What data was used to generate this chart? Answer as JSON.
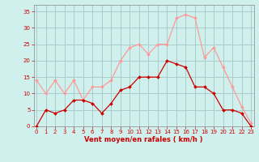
{
  "hours": [
    0,
    1,
    2,
    3,
    4,
    5,
    6,
    7,
    8,
    9,
    10,
    11,
    12,
    13,
    14,
    15,
    16,
    17,
    18,
    19,
    20,
    21,
    22,
    23
  ],
  "wind_avg": [
    0,
    5,
    4,
    5,
    8,
    8,
    7,
    4,
    7,
    11,
    12,
    15,
    15,
    15,
    20,
    19,
    18,
    12,
    12,
    10,
    5,
    5,
    4,
    0
  ],
  "wind_gust": [
    14,
    10,
    14,
    10,
    14,
    8,
    12,
    12,
    14,
    20,
    24,
    25,
    22,
    25,
    25,
    33,
    34,
    33,
    21,
    24,
    18,
    12,
    6,
    1
  ],
  "bg_color": "#cff0ec",
  "grid_color": "#aacccc",
  "line_avg_color": "#cc0000",
  "line_gust_color": "#ff9999",
  "marker_size": 2.0,
  "xlabel": "Vent moyen/en rafales ( km/h )",
  "xlabel_color": "#cc0000",
  "tick_color": "#cc0000",
  "ylim": [
    0,
    37
  ],
  "yticks": [
    0,
    5,
    10,
    15,
    20,
    25,
    30,
    35
  ],
  "xlim": [
    -0.3,
    23.3
  ],
  "xticks": [
    0,
    1,
    2,
    3,
    4,
    5,
    6,
    7,
    8,
    9,
    10,
    11,
    12,
    13,
    14,
    15,
    16,
    17,
    18,
    19,
    20,
    21,
    22,
    23
  ],
  "xlabel_fontsize": 6.0,
  "tick_fontsize": 5.0,
  "linewidth": 0.9
}
